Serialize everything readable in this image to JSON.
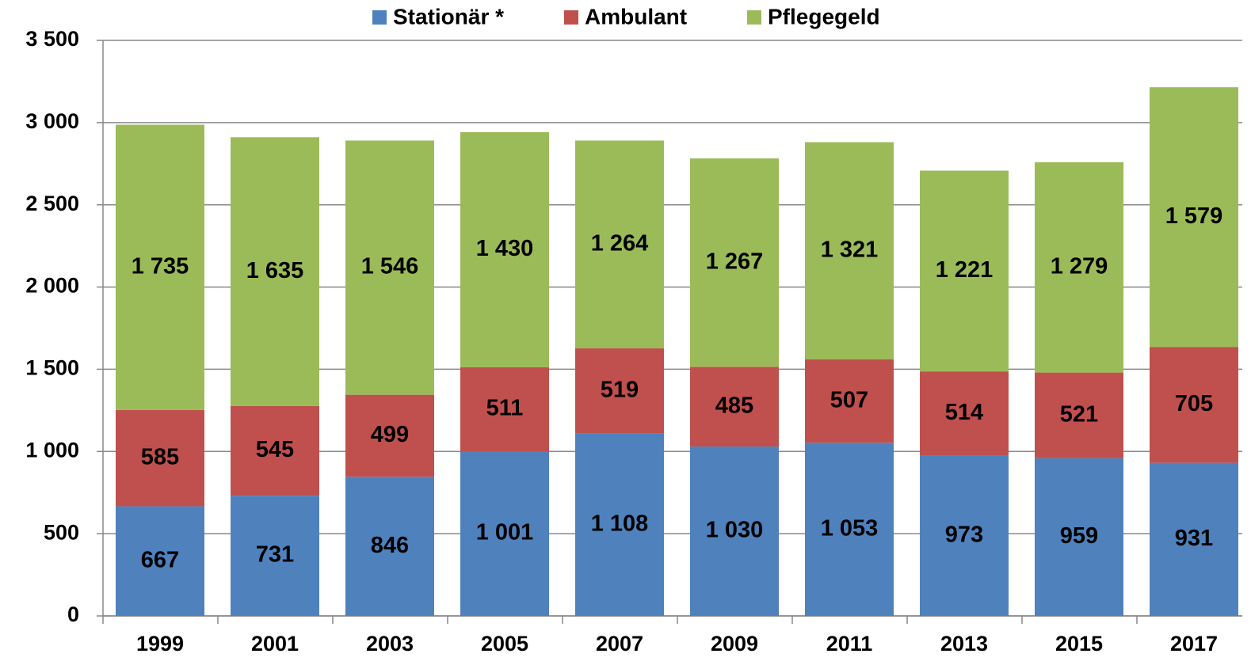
{
  "chart_data": {
    "type": "stacked_bar",
    "categories": [
      "1999",
      "2001",
      "2003",
      "2005",
      "2007",
      "2009",
      "2011",
      "2013",
      "2015",
      "2017"
    ],
    "series": [
      {
        "name": "Stationär *",
        "color": "#4f81bd",
        "values": [
          667,
          731,
          846,
          1001,
          1108,
          1030,
          1053,
          973,
          959,
          931
        ],
        "value_labels": [
          "667",
          "731",
          "846",
          "1 001",
          "1 108",
          "1 030",
          "1 053",
          "973",
          "959",
          "931"
        ]
      },
      {
        "name": "Ambulant",
        "color": "#c0504d",
        "values": [
          585,
          545,
          499,
          511,
          519,
          485,
          507,
          514,
          521,
          705
        ],
        "value_labels": [
          "585",
          "545",
          "499",
          "511",
          "519",
          "485",
          "507",
          "514",
          "521",
          "705"
        ]
      },
      {
        "name": "Pflegegeld",
        "color": "#9bbb59",
        "values": [
          1735,
          1635,
          1546,
          1430,
          1264,
          1267,
          1321,
          1221,
          1279,
          1579
        ],
        "value_labels": [
          "1 735",
          "1 635",
          "1 546",
          "1 430",
          "1 264",
          "1 267",
          "1 321",
          "1 221",
          "1 279",
          "1 579"
        ]
      }
    ],
    "ylim": [
      0,
      3500
    ],
    "yticks": [
      0,
      500,
      {
        "value": 1000,
        "label": "1 000"
      },
      {
        "value": 1500,
        "label": "1 500"
      },
      {
        "value": 2000,
        "label": "2 000"
      },
      {
        "value": 2500,
        "label": "2 500"
      },
      {
        "value": 3000,
        "label": "3 000"
      },
      {
        "value": 3500,
        "label": "3 500"
      }
    ],
    "grid": true,
    "legend": "top"
  }
}
